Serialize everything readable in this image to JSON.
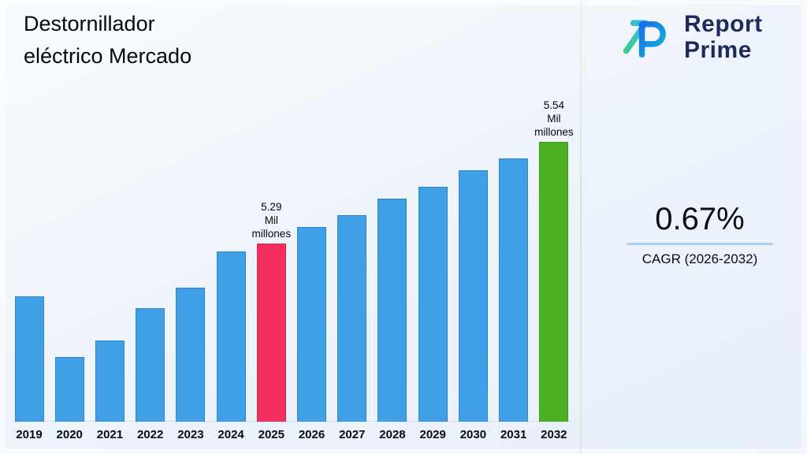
{
  "title": {
    "line1": "Destornillador",
    "line2": "eléctrico Mercado"
  },
  "logo": {
    "line1": "Report",
    "line2": "Prime",
    "mark": "report-prime-monogram"
  },
  "stat": {
    "value": "0.67%",
    "label": "CAGR (2026-2032)"
  },
  "colors": {
    "bar_default": "#3fa0e8",
    "bar_highlight_2025": "#f5305f",
    "bar_highlight_2032": "#4cb122",
    "logo_navy": "#1e2a5c",
    "stat_rule": "#aecdf0"
  },
  "chart_data": {
    "type": "bar",
    "title": "Destornillador eléctrico Mercado",
    "xlabel": "",
    "ylabel": "Mil millones",
    "unit": "Mil millones",
    "grid": false,
    "legend": "none",
    "ylim": [
      4.85,
      5.54
    ],
    "categories": [
      "2019",
      "2020",
      "2021",
      "2022",
      "2023",
      "2024",
      "2025",
      "2026",
      "2027",
      "2028",
      "2029",
      "2030",
      "2031",
      "2032"
    ],
    "values": [
      5.16,
      5.01,
      5.05,
      5.13,
      5.18,
      5.27,
      5.29,
      5.33,
      5.36,
      5.4,
      5.43,
      5.47,
      5.5,
      5.54
    ],
    "bar_colors": [
      "#3fa0e8",
      "#3fa0e8",
      "#3fa0e8",
      "#3fa0e8",
      "#3fa0e8",
      "#3fa0e8",
      "#f5305f",
      "#3fa0e8",
      "#3fa0e8",
      "#3fa0e8",
      "#3fa0e8",
      "#3fa0e8",
      "#3fa0e8",
      "#4cb122"
    ],
    "annotations": [
      {
        "index": 6,
        "category": "2025",
        "lines": [
          "5.29",
          "Mil",
          "millones"
        ]
      },
      {
        "index": 13,
        "category": "2032",
        "lines": [
          "5.54",
          "Mil",
          "millones"
        ]
      }
    ]
  }
}
